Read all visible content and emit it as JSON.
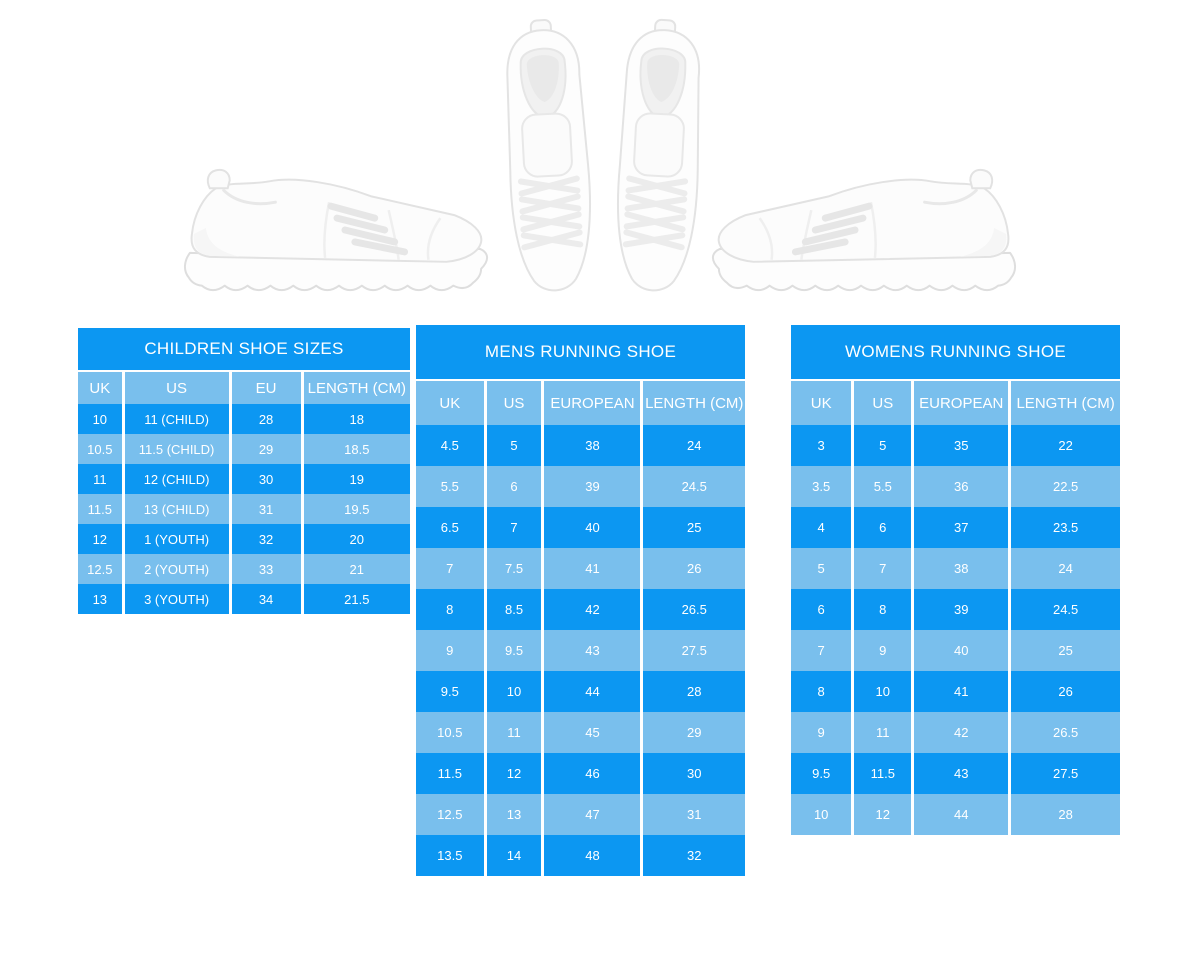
{
  "colors": {
    "table_dark_blue": "#0c97f2",
    "table_light_blue": "#79bfed",
    "table_text": "#ffffff",
    "page_background": "#ffffff"
  },
  "images": {
    "left": "white-sneaker-side-view-facing-right",
    "center": "white-sneakers-pair-top-view",
    "right": "white-sneaker-side-view-facing-left"
  },
  "tables": [
    {
      "id": "children",
      "title": "CHILDREN SHOE SIZES",
      "headers": [
        "UK",
        "US",
        "EU",
        "LENGTH (CM)"
      ],
      "rows": [
        [
          "10",
          "11 (CHILD)",
          "28",
          "18"
        ],
        [
          "10.5",
          "11.5 (CHILD)",
          "29",
          "18.5"
        ],
        [
          "11",
          "12 (CHILD)",
          "30",
          "19"
        ],
        [
          "11.5",
          "13 (CHILD)",
          "31",
          "19.5"
        ],
        [
          "12",
          "1 (YOUTH)",
          "32",
          "20"
        ],
        [
          "12.5",
          "2 (YOUTH)",
          "33",
          "21"
        ],
        [
          "13",
          "3 (YOUTH)",
          "34",
          "21.5"
        ]
      ]
    },
    {
      "id": "mens",
      "title": "MENS RUNNING SHOE",
      "headers": [
        "UK",
        "US",
        "EUROPEAN",
        "LENGTH (CM)"
      ],
      "rows": [
        [
          "4.5",
          "5",
          "38",
          "24"
        ],
        [
          "5.5",
          "6",
          "39",
          "24.5"
        ],
        [
          "6.5",
          "7",
          "40",
          "25"
        ],
        [
          "7",
          "7.5",
          "41",
          "26"
        ],
        [
          "8",
          "8.5",
          "42",
          "26.5"
        ],
        [
          "9",
          "9.5",
          "43",
          "27.5"
        ],
        [
          "9.5",
          "10",
          "44",
          "28"
        ],
        [
          "10.5",
          "11",
          "45",
          "29"
        ],
        [
          "11.5",
          "12",
          "46",
          "30"
        ],
        [
          "12.5",
          "13",
          "47",
          "31"
        ],
        [
          "13.5",
          "14",
          "48",
          "32"
        ]
      ]
    },
    {
      "id": "womens",
      "title": "WOMENS RUNNING SHOE",
      "headers": [
        "UK",
        "US",
        "EUROPEAN",
        "LENGTH (CM)"
      ],
      "rows": [
        [
          "3",
          "5",
          "35",
          "22"
        ],
        [
          "3.5",
          "5.5",
          "36",
          "22.5"
        ],
        [
          "4",
          "6",
          "37",
          "23.5"
        ],
        [
          "5",
          "7",
          "38",
          "24"
        ],
        [
          "6",
          "8",
          "39",
          "24.5"
        ],
        [
          "7",
          "9",
          "40",
          "25"
        ],
        [
          "8",
          "10",
          "41",
          "26"
        ],
        [
          "9",
          "11",
          "42",
          "26.5"
        ],
        [
          "9.5",
          "11.5",
          "43",
          "27.5"
        ],
        [
          "10",
          "12",
          "44",
          "28"
        ]
      ]
    }
  ]
}
